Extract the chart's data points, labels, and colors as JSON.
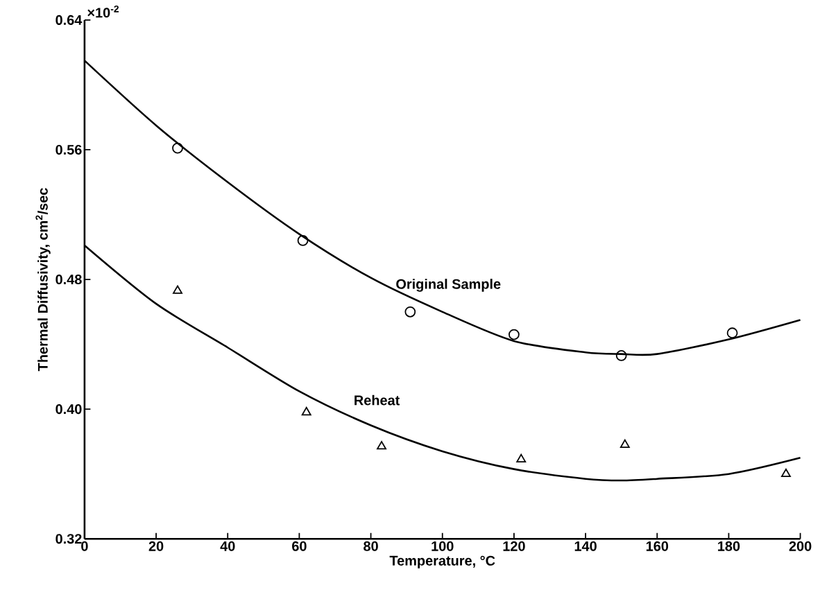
{
  "chart_data": {
    "type": "scatter",
    "xlabel": "Temperature, °C",
    "ylabel": "Thermal Diffusivity, cm$^{2}$/sec",
    "xlim": [
      0,
      200
    ],
    "ylim": [
      0.32,
      0.64
    ],
    "xticks": [
      0,
      20,
      40,
      60,
      80,
      100,
      120,
      140,
      160,
      180,
      200
    ],
    "yticks": [
      0.32,
      {
        "value": 0.4,
        "label": "0.40"
      },
      0.48,
      0.56,
      0.64
    ],
    "annotations": [
      "×10$^{-2}$"
    ],
    "series": [
      {
        "marker": "circle",
        "color": "#000000",
        "x": [
          26,
          61,
          91,
          120,
          150,
          181
        ],
        "values": [
          0.561,
          0.504,
          0.46,
          0.446,
          0.433,
          0.447
        ]
      },
      {
        "marker": "triangle",
        "color": "#000000",
        "x": [
          26,
          62,
          83,
          122,
          151,
          196
        ],
        "values": [
          0.473,
          0.398,
          0.377,
          0.369,
          0.378,
          0.36
        ]
      },
      {
        "type": "line",
        "name": "Original Sample",
        "color": "#000000",
        "x": [
          0,
          20,
          40,
          60,
          80,
          100,
          120,
          140,
          150,
          160,
          180,
          200
        ],
        "values": [
          0.615,
          0.575,
          0.54,
          0.508,
          0.481,
          0.46,
          0.442,
          0.435,
          0.434,
          0.434,
          0.443,
          0.455
        ]
      },
      {
        "type": "line",
        "name": "Reheat",
        "color": "#000000",
        "x": [
          0,
          20,
          40,
          60,
          80,
          100,
          120,
          140,
          150,
          160,
          180,
          200
        ],
        "values": [
          0.501,
          0.465,
          0.438,
          0.411,
          0.39,
          0.374,
          0.363,
          0.357,
          0.356,
          0.357,
          0.36,
          0.37
        ]
      }
    ]
  }
}
